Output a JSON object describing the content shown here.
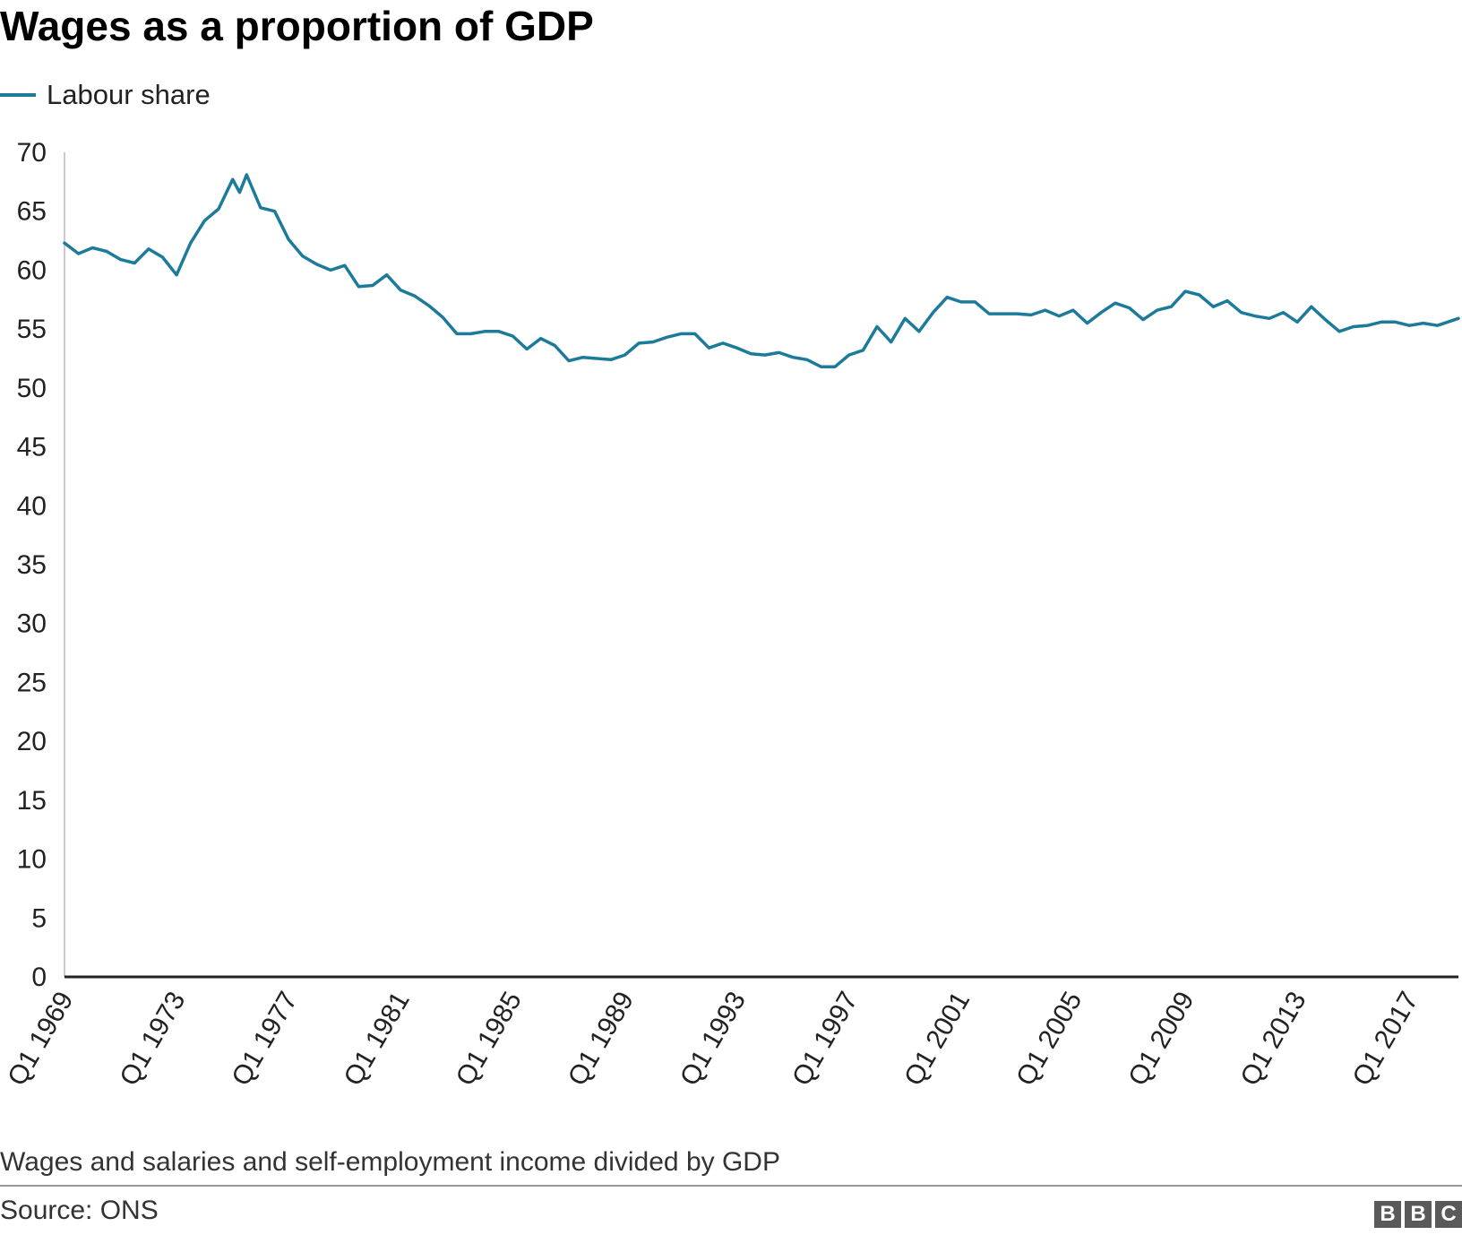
{
  "chart_data": {
    "type": "line",
    "title": "Wages as a proportion of GDP",
    "ylim": [
      0,
      70
    ],
    "yticks": [
      0,
      5,
      10,
      15,
      20,
      25,
      30,
      35,
      40,
      45,
      50,
      55,
      60,
      65,
      70
    ],
    "xtick_labels": [
      "Q1 1969",
      "Q1 1973",
      "Q1 1977",
      "Q1 1981",
      "Q1 1985",
      "Q1 1989",
      "Q1 1993",
      "Q1 1997",
      "Q1 2001",
      "Q1 2005",
      "Q1 2009",
      "Q1 2013",
      "Q1 2017"
    ],
    "xtick_years": [
      1969,
      1973,
      1977,
      1981,
      1985,
      1989,
      1993,
      1997,
      2001,
      2005,
      2009,
      2013,
      2017
    ],
    "x_start": 1969.0,
    "x_end": 2018.75,
    "grid": false,
    "legend_position": "top-left",
    "series": [
      {
        "name": "Labour share",
        "color": "#1c7b9a",
        "x": [
          1969.0,
          1969.5,
          1970.0,
          1970.5,
          1971.0,
          1971.5,
          1972.0,
          1972.5,
          1973.0,
          1973.5,
          1974.0,
          1974.5,
          1975.0,
          1975.25,
          1975.5,
          1976.0,
          1976.5,
          1977.0,
          1977.5,
          1978.0,
          1978.5,
          1979.0,
          1979.5,
          1980.0,
          1980.5,
          1981.0,
          1981.5,
          1982.0,
          1982.5,
          1983.0,
          1983.5,
          1984.0,
          1984.5,
          1985.0,
          1985.5,
          1986.0,
          1986.5,
          1987.0,
          1987.5,
          1988.0,
          1988.5,
          1989.0,
          1989.5,
          1990.0,
          1990.5,
          1991.0,
          1991.5,
          1992.0,
          1992.5,
          1993.0,
          1993.5,
          1994.0,
          1994.5,
          1995.0,
          1995.5,
          1996.0,
          1996.5,
          1997.0,
          1997.5,
          1998.0,
          1998.5,
          1999.0,
          1999.5,
          2000.0,
          2000.5,
          2001.0,
          2001.5,
          2002.0,
          2002.5,
          2003.0,
          2003.5,
          2004.0,
          2004.5,
          2005.0,
          2005.5,
          2006.0,
          2006.5,
          2007.0,
          2007.5,
          2008.0,
          2008.5,
          2009.0,
          2009.5,
          2010.0,
          2010.5,
          2011.0,
          2011.5,
          2012.0,
          2012.5,
          2013.0,
          2013.5,
          2014.0,
          2014.5,
          2015.0,
          2015.5,
          2016.0,
          2016.5,
          2017.0,
          2017.5,
          2018.0,
          2018.75
        ],
        "values": [
          62.3,
          61.4,
          61.9,
          61.6,
          60.9,
          60.6,
          61.8,
          61.1,
          59.6,
          62.3,
          64.2,
          65.2,
          67.7,
          66.6,
          68.1,
          65.3,
          65.0,
          62.6,
          61.2,
          60.5,
          60.0,
          60.4,
          58.6,
          58.7,
          59.6,
          58.3,
          57.8,
          57.0,
          56.0,
          54.6,
          54.6,
          54.8,
          54.8,
          54.4,
          53.3,
          54.2,
          53.6,
          52.3,
          52.6,
          52.5,
          52.4,
          52.8,
          53.8,
          53.9,
          54.3,
          54.6,
          54.6,
          53.4,
          53.8,
          53.4,
          52.9,
          52.8,
          53.0,
          52.6,
          52.4,
          51.8,
          51.8,
          52.8,
          53.2,
          55.2,
          53.9,
          55.9,
          54.8,
          56.4,
          57.7,
          57.3,
          57.3,
          56.3,
          56.3,
          56.3,
          56.2,
          56.6,
          56.1,
          56.6,
          55.5,
          56.4,
          57.2,
          56.8,
          55.8,
          56.6,
          56.9,
          58.2,
          57.9,
          56.9,
          57.4,
          56.4,
          56.1,
          55.9,
          56.4,
          55.6,
          56.9,
          55.8,
          54.8,
          55.2,
          55.3,
          55.6,
          55.6,
          55.3,
          55.5,
          55.3,
          55.9
        ]
      }
    ],
    "subtitle_note": "Wages and salaries and self-employment income divided by GDP",
    "source": "Source: ONS"
  },
  "brand": {
    "logo_letters": [
      "B",
      "B",
      "C"
    ]
  }
}
